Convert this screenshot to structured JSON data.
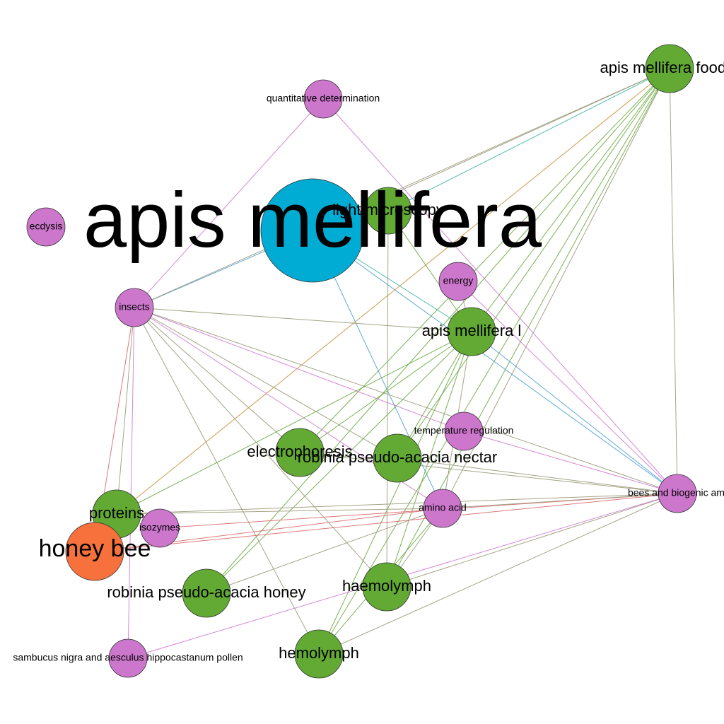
{
  "colors": {
    "group_blue": "#00ACD4",
    "group_green": "#62AA33",
    "group_pink": "#CC77CC",
    "group_orange": "#F7713D",
    "edge_gray": "#9A9A7A",
    "edge_green": "#6AAA40",
    "edge_pink": "#D27AD2",
    "edge_blue": "#4FA0D4",
    "edge_red": "#D86A6A",
    "edge_orange": "#C8903A",
    "edge_teal": "#3AB7A6"
  },
  "nodes": [
    {
      "id": "apis_mellifera",
      "label": "apis mellifera",
      "group": "group_blue"
    },
    {
      "id": "light_microscopy",
      "label": "light microscopy",
      "group": "group_green"
    },
    {
      "id": "apis_mellifera_food",
      "label": "apis mellifera food g",
      "group": "group_green"
    },
    {
      "id": "apis_mellifera_l",
      "label": "apis mellifera l",
      "group": "group_green"
    },
    {
      "id": "electrophoresis",
      "label": "electrophoresis",
      "group": "group_green"
    },
    {
      "id": "robinia_nectar",
      "label": "robinia pseudo-acacia nectar",
      "group": "group_green"
    },
    {
      "id": "proteins",
      "label": "proteins",
      "group": "group_green"
    },
    {
      "id": "robinia_honey",
      "label": "robinia pseudo-acacia honey",
      "group": "group_green"
    },
    {
      "id": "haemolymph",
      "label": "haemolymph",
      "group": "group_green"
    },
    {
      "id": "hemolymph",
      "label": "hemolymph",
      "group": "group_green"
    },
    {
      "id": "honey_bee",
      "label": "honey bee",
      "group": "group_orange"
    },
    {
      "id": "quantitative_determination",
      "label": "quantitative determination",
      "group": "group_pink"
    },
    {
      "id": "ecdysis",
      "label": "ecdysis",
      "group": "group_pink"
    },
    {
      "id": "insects",
      "label": "insects",
      "group": "group_pink"
    },
    {
      "id": "energy",
      "label": "energy",
      "group": "group_pink"
    },
    {
      "id": "temperature_regulation",
      "label": "temperature regulation",
      "group": "group_pink"
    },
    {
      "id": "bees_biogenic",
      "label": "bees and biogenic ami",
      "group": "group_pink"
    },
    {
      "id": "amino_acid",
      "label": "amino acid",
      "group": "group_pink"
    },
    {
      "id": "isozymes",
      "label": "isozymes",
      "group": "group_pink"
    },
    {
      "id": "sambucus_pollen",
      "label": "sambucus nigra and aesculus hippocastanum pollen",
      "group": "group_pink"
    }
  ],
  "edges": [
    {
      "source": "quantitative_determination",
      "target": "insects",
      "color": "edge_pink"
    },
    {
      "source": "quantitative_determination",
      "target": "bees_biogenic",
      "color": "edge_pink"
    },
    {
      "source": "apis_mellifera",
      "target": "insects",
      "color": "edge_blue"
    },
    {
      "source": "apis_mellifera",
      "target": "amino_acid",
      "color": "edge_blue"
    },
    {
      "source": "apis_mellifera",
      "target": "apis_mellifera_l",
      "color": "edge_teal"
    },
    {
      "source": "apis_mellifera",
      "target": "bees_biogenic",
      "color": "edge_blue"
    },
    {
      "source": "apis_mellifera_food",
      "target": "apis_mellifera",
      "color": "edge_gray"
    },
    {
      "source": "apis_mellifera_food",
      "target": "light_microscopy",
      "color": "edge_teal"
    },
    {
      "source": "apis_mellifera_food",
      "target": "insects",
      "color": "edge_gray"
    },
    {
      "source": "apis_mellifera_food",
      "target": "apis_mellifera_l",
      "color": "edge_green"
    },
    {
      "source": "apis_mellifera_food",
      "target": "electrophoresis",
      "color": "edge_green"
    },
    {
      "source": "apis_mellifera_food",
      "target": "robinia_nectar",
      "color": "edge_green"
    },
    {
      "source": "apis_mellifera_food",
      "target": "proteins",
      "color": "edge_orange"
    },
    {
      "source": "apis_mellifera_food",
      "target": "haemolymph",
      "color": "edge_green"
    },
    {
      "source": "apis_mellifera_food",
      "target": "hemolymph",
      "color": "edge_green"
    },
    {
      "source": "apis_mellifera_food",
      "target": "amino_acid",
      "color": "edge_gray"
    },
    {
      "source": "apis_mellifera_food",
      "target": "bees_biogenic",
      "color": "edge_gray"
    },
    {
      "source": "apis_mellifera_food",
      "target": "robinia_honey",
      "color": "edge_green"
    },
    {
      "source": "light_microscopy",
      "target": "haemolymph",
      "color": "edge_gray"
    },
    {
      "source": "light_microscopy",
      "target": "apis_mellifera_l",
      "color": "edge_green"
    },
    {
      "source": "energy",
      "target": "bees_biogenic",
      "color": "edge_pink"
    },
    {
      "source": "insects",
      "target": "apis_mellifera_l",
      "color": "edge_gray"
    },
    {
      "source": "insects",
      "target": "temperature_regulation",
      "color": "edge_pink"
    },
    {
      "source": "insects",
      "target": "bees_biogenic",
      "color": "edge_gray"
    },
    {
      "source": "insects",
      "target": "amino_acid",
      "color": "edge_pink"
    },
    {
      "source": "insects",
      "target": "proteins",
      "color": "edge_gray"
    },
    {
      "source": "insects",
      "target": "honey_bee",
      "color": "edge_red"
    },
    {
      "source": "insects",
      "target": "sambucus_pollen",
      "color": "edge_pink"
    },
    {
      "source": "insects",
      "target": "hemolymph",
      "color": "edge_gray"
    },
    {
      "source": "insects",
      "target": "haemolymph",
      "color": "edge_gray"
    },
    {
      "source": "insects",
      "target": "robinia_nectar",
      "color": "edge_gray"
    },
    {
      "source": "insects",
      "target": "electrophoresis",
      "color": "edge_gray"
    },
    {
      "source": "apis_mellifera_l",
      "target": "proteins",
      "color": "edge_green"
    },
    {
      "source": "apis_mellifera_l",
      "target": "robinia_honey",
      "color": "edge_green"
    },
    {
      "source": "apis_mellifera_l",
      "target": "haemolymph",
      "color": "edge_green"
    },
    {
      "source": "apis_mellifera_l",
      "target": "hemolymph",
      "color": "edge_green"
    },
    {
      "source": "apis_mellifera_l",
      "target": "electrophoresis",
      "color": "edge_green"
    },
    {
      "source": "apis_mellifera_l",
      "target": "robinia_nectar",
      "color": "edge_green"
    },
    {
      "source": "apis_mellifera_l",
      "target": "amino_acid",
      "color": "edge_gray"
    },
    {
      "source": "apis_mellifera_l",
      "target": "bees_biogenic",
      "color": "edge_blue"
    },
    {
      "source": "temperature_regulation",
      "target": "bees_biogenic",
      "color": "edge_pink"
    },
    {
      "source": "electrophoresis",
      "target": "bees_biogenic",
      "color": "edge_gray"
    },
    {
      "source": "robinia_nectar",
      "target": "bees_biogenic",
      "color": "edge_gray"
    },
    {
      "source": "proteins",
      "target": "bees_biogenic",
      "color": "edge_gray"
    },
    {
      "source": "proteins",
      "target": "amino_acid",
      "color": "edge_gray"
    },
    {
      "source": "honey_bee",
      "target": "bees_biogenic",
      "color": "edge_red"
    },
    {
      "source": "honey_bee",
      "target": "amino_acid",
      "color": "edge_red"
    },
    {
      "source": "isozymes",
      "target": "bees_biogenic",
      "color": "edge_red"
    },
    {
      "source": "robinia_honey",
      "target": "amino_acid",
      "color": "edge_gray"
    },
    {
      "source": "haemolymph",
      "target": "bees_biogenic",
      "color": "edge_gray"
    },
    {
      "source": "haemolymph",
      "target": "amino_acid",
      "color": "edge_gray"
    },
    {
      "source": "hemolymph",
      "target": "amino_acid",
      "color": "edge_green"
    },
    {
      "source": "hemolymph",
      "target": "bees_biogenic",
      "color": "edge_gray"
    },
    {
      "source": "sambucus_pollen",
      "target": "bees_biogenic",
      "color": "edge_pink"
    },
    {
      "source": "amino_acid",
      "target": "bees_biogenic",
      "color": "edge_gray"
    },
    {
      "source": "energy",
      "target": "apis_mellifera_l",
      "color": "edge_pink"
    }
  ]
}
